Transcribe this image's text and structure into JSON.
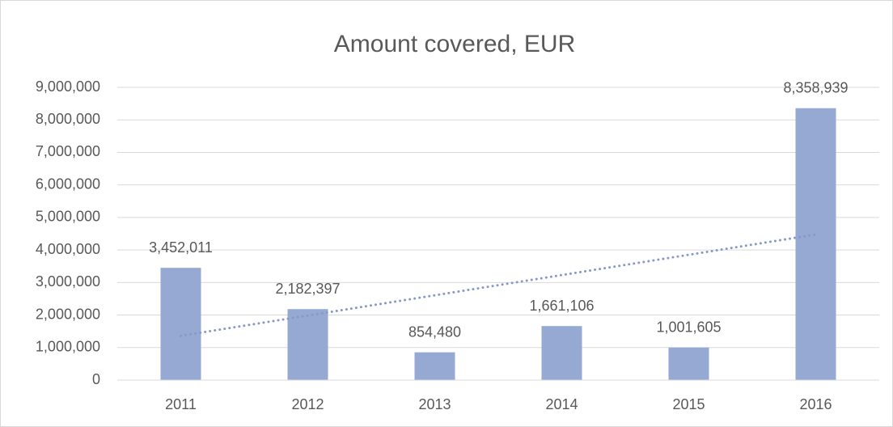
{
  "chart_data": {
    "type": "bar",
    "title": "Amount covered, EUR",
    "categories": [
      "2011",
      "2012",
      "2013",
      "2014",
      "2015",
      "2016"
    ],
    "values": [
      3452011,
      2182397,
      854480,
      1661106,
      1001605,
      8358939
    ],
    "value_labels": [
      "3,452,011",
      "2,182,397",
      "854,480",
      "1,661,106",
      "1,001,605",
      "8,358,939"
    ],
    "color": "#95a9d2",
    "ylim": [
      0,
      9000000
    ],
    "yticks": [
      0,
      {
        "value": 1000000,
        "label": "1,000,000"
      },
      {
        "value": 2000000,
        "label": "2,000,000"
      },
      {
        "value": 3000000,
        "label": "3,000,000"
      },
      {
        "value": 4000000,
        "label": "4,000,000"
      },
      {
        "value": 5000000,
        "label": "5,000,000"
      },
      {
        "value": 6000000,
        "label": "6,000,000"
      },
      {
        "value": 7000000,
        "label": "7,000,000"
      },
      {
        "value": 8000000,
        "label": "8,000,000"
      },
      {
        "value": 9000000,
        "label": "9,000,000"
      }
    ],
    "grid": true,
    "trendline": "linear"
  }
}
